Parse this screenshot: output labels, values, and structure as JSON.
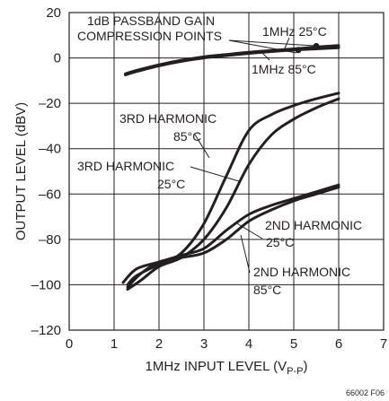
{
  "chart_data": {
    "type": "line",
    "title": "",
    "xlabel_main": "1MHz INPUT LEVEL (V",
    "xlabel_sub": "P-P",
    "xlabel_end": ")",
    "ylabel": "OUTPUT LEVEL (dBV)",
    "xlim": [
      0,
      7
    ],
    "ylim": [
      -120,
      20
    ],
    "x_ticks": [
      0,
      1,
      2,
      3,
      4,
      5,
      6,
      7
    ],
    "y_ticks": [
      20,
      0,
      -20,
      -40,
      -60,
      -80,
      -100,
      -120
    ],
    "y_tick_labels": [
      "20",
      "0",
      "–20",
      "–40",
      "–60",
      "–80",
      "–100",
      "–120"
    ],
    "grid": true,
    "series": [
      {
        "id": "fund-25",
        "x": [
          1.25,
          1.5,
          2,
          2.5,
          3,
          3.5,
          4,
          4.5,
          5,
          5.5,
          6
        ],
        "y": [
          -7,
          -5.5,
          -3,
          -1,
          0.5,
          1.5,
          2.5,
          3.3,
          4,
          4.8,
          5.5
        ]
      },
      {
        "id": "fund-85",
        "x": [
          1.25,
          1.5,
          2,
          2.5,
          3,
          3.5,
          4,
          4.5,
          5,
          5.5,
          6
        ],
        "y": [
          -7.5,
          -6,
          -3.5,
          -1.5,
          0,
          1,
          2,
          2.8,
          3.5,
          4,
          4.5
        ]
      },
      {
        "id": "h3-85",
        "x": [
          1.3,
          1.5,
          2,
          2.5,
          3,
          3.5,
          4,
          4.5,
          5,
          5.5,
          6
        ],
        "y": [
          -100,
          -96,
          -91,
          -86,
          -73,
          -52,
          -32,
          -25,
          -21,
          -18,
          -15.5
        ]
      },
      {
        "id": "h3-25",
        "x": [
          1.3,
          1.6,
          2,
          2.5,
          3,
          3.5,
          4,
          4.5,
          5,
          5.5,
          6
        ],
        "y": [
          -102,
          -98,
          -92,
          -88,
          -80,
          -66,
          -47,
          -34,
          -27,
          -22,
          -18
        ]
      },
      {
        "id": "h2-25",
        "x": [
          1.2,
          1.5,
          2,
          2.5,
          3,
          3.5,
          4,
          4.5,
          5,
          5.5,
          6
        ],
        "y": [
          -99,
          -93,
          -90,
          -87,
          -84,
          -76,
          -69,
          -65,
          -62,
          -59,
          -56
        ]
      },
      {
        "id": "h2-85",
        "x": [
          1.3,
          1.6,
          2,
          2.5,
          3,
          3.5,
          4,
          4.5,
          5,
          5.5,
          6
        ],
        "y": [
          -101,
          -95,
          -90,
          -88,
          -86,
          -80,
          -72,
          -67,
          -63,
          -60,
          -57
        ]
      }
    ],
    "compression_points": [
      {
        "x": 5.5,
        "y": 5.2
      },
      {
        "x": 5.1,
        "y": 3.5
      }
    ],
    "annotations": {
      "compression_line1": "1dB PASSBAND GAIN",
      "compression_line2": "COMPRESSION POINTS",
      "fund25": "1MHz 25°C",
      "fund85": "1MHz 85°C",
      "h3_85_line1": "3RD HARMONIC",
      "h3_85_line2": "85°C",
      "h3_25_line1": "3RD HARMONIC",
      "h3_25_line2": "25°C",
      "h2_25_line1": "2ND HARMONIC",
      "h2_25_line2": "25°C",
      "h2_85_line1": "2ND HARMONIC",
      "h2_85_line2": "85°C"
    },
    "figure_id": "66002 F06"
  }
}
